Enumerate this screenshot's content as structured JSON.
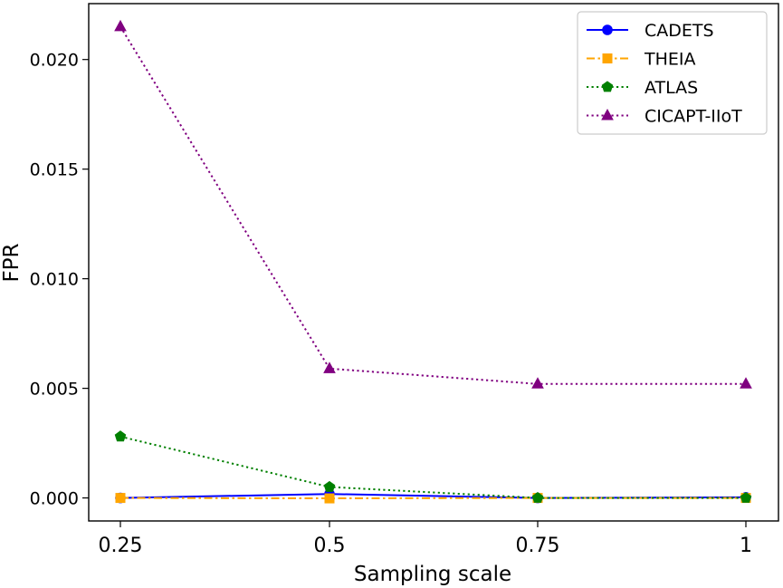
{
  "chart_data": {
    "type": "line",
    "title": "",
    "xlabel": "Sampling scale",
    "ylabel": "FPR",
    "categories": [
      "0.25",
      "0.5",
      "0.75",
      "1"
    ],
    "yticks": [
      "0.000",
      "0.005",
      "0.010",
      "0.015",
      "0.020"
    ],
    "ylim": [
      -0.00105,
      0.02255
    ],
    "grid": false,
    "legend_position": "top-right",
    "series": [
      {
        "name": "CADETS",
        "values": [
          0.0,
          0.00018,
          0.0,
          3e-05
        ],
        "color": "#0000ff",
        "marker": "circle",
        "linestyle": "solid"
      },
      {
        "name": "THEIA",
        "values": [
          0.0,
          -2e-05,
          0.0,
          0.0
        ],
        "color": "#ffa500",
        "marker": "square",
        "linestyle": "dashdot"
      },
      {
        "name": "ATLAS",
        "values": [
          0.0028,
          0.0005,
          0.0,
          0.0
        ],
        "color": "#008000",
        "marker": "pentagon",
        "linestyle": "dotted"
      },
      {
        "name": "CICAPT-IIoT",
        "values": [
          0.0215,
          0.0059,
          0.0052,
          0.0052
        ],
        "color": "#800080",
        "marker": "triangle",
        "linestyle": "dotted"
      }
    ]
  }
}
